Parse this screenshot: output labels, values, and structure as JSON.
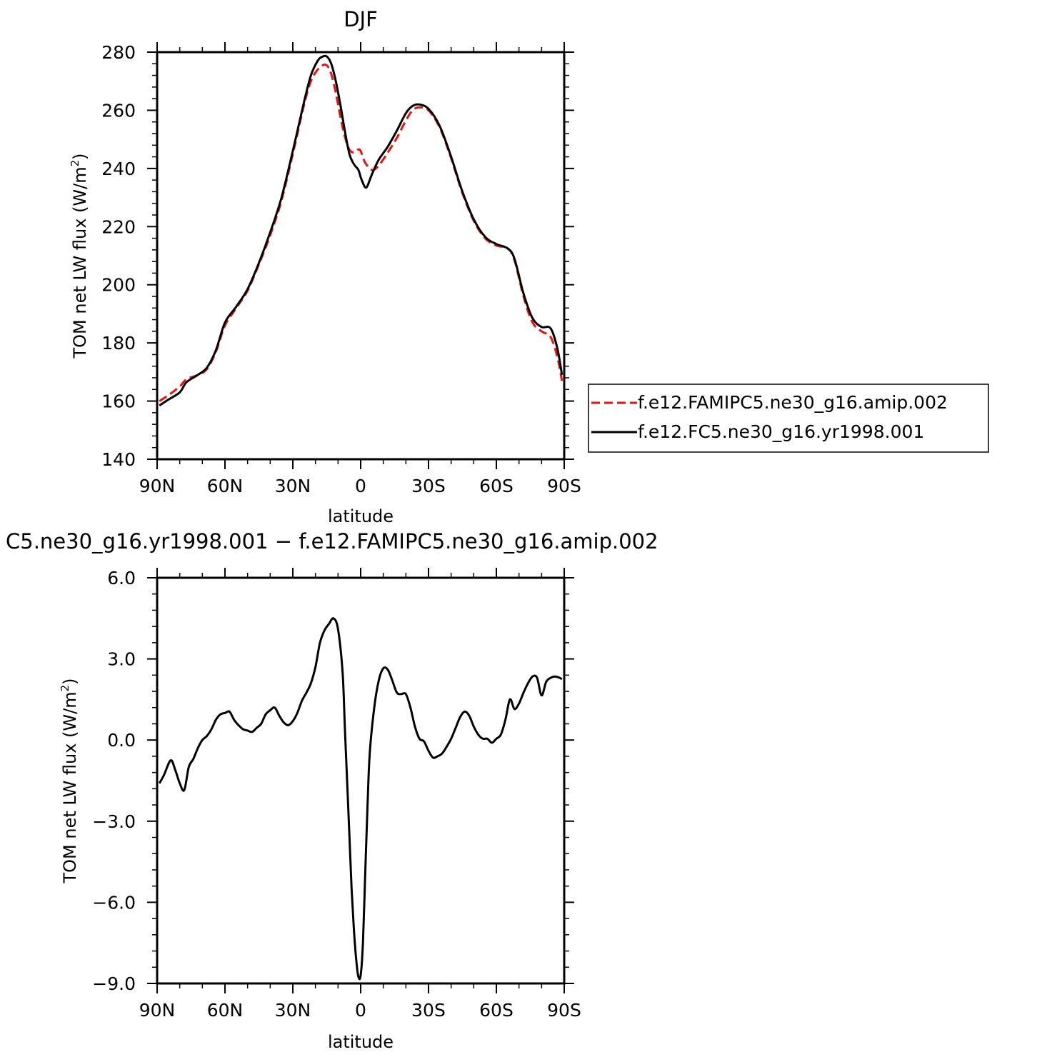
{
  "figure": {
    "top_title": "DJF",
    "bottom_title": "C5.ne30_g16.yr1998.001 − f.e12.FAMIPC5.ne30_g16.amip.002"
  },
  "colors": {
    "control": "#e8130f",
    "test": "#000000"
  },
  "legend": {
    "items": [
      {
        "label": "f.e12.FAMIPC5.ne30_g16.amip.002",
        "style": "dashed",
        "color": "#e8130f"
      },
      {
        "label": "f.e12.FC5.ne30_g16.yr1998.001",
        "style": "solid",
        "color": "#000000"
      }
    ]
  },
  "chart_data": [
    {
      "type": "line",
      "title": "DJF",
      "xlabel": "latitude",
      "ylabel": "TOM net LW flux (W/m²)",
      "ylabel_main": "TOM net LW flux (W/m",
      "ylabel_sup": "2",
      "ylabel_end": ")",
      "xlim": [
        90,
        -90
      ],
      "ylim": [
        140,
        280
      ],
      "x_ticks": [
        90,
        60,
        30,
        0,
        -30,
        -60,
        -90
      ],
      "x_tick_labels": [
        "90N",
        "60N",
        "30N",
        "0",
        "30S",
        "60S",
        "90S"
      ],
      "y_ticks": [
        140,
        160,
        180,
        200,
        220,
        240,
        260,
        280
      ],
      "y_tick_labels": [
        "140",
        "160",
        "180",
        "200",
        "220",
        "240",
        "260",
        "280"
      ],
      "grid": false,
      "legend_position": "right",
      "series": [
        {
          "name": "f.e12.FAMIPC5.ne30_g16.amip.002",
          "style": "dashed",
          "x": [
            89,
            85,
            80,
            77,
            72,
            68,
            64,
            60,
            55,
            50,
            45,
            40,
            35,
            30,
            25,
            22,
            19,
            17,
            15,
            13,
            11,
            9,
            7,
            5,
            3,
            1,
            0,
            -2,
            -5,
            -8,
            -12,
            -16,
            -20,
            -23,
            -26,
            -30,
            -35,
            -40,
            -45,
            -50,
            -55,
            -60,
            -65,
            -68,
            -72,
            -76,
            -80,
            -84,
            -87,
            -89
          ],
          "y": [
            160,
            162,
            165,
            167.5,
            169,
            171,
            177,
            186,
            192,
            198,
            207,
            217,
            229,
            245,
            262,
            270,
            274,
            275.4,
            275.5,
            272.5,
            266,
            258,
            251,
            246.5,
            245.5,
            246.5,
            246,
            242,
            239.5,
            241,
            245.5,
            250.5,
            256.5,
            260,
            261,
            260,
            254,
            243.5,
            231.5,
            222,
            216,
            213.5,
            212.5,
            208.5,
            196,
            187,
            184,
            182,
            175,
            167
          ]
        },
        {
          "name": "f.e12.FC5.ne30_g16.yr1998.001",
          "style": "solid",
          "x": [
            89,
            85,
            80,
            77,
            72,
            68,
            64,
            60,
            55,
            50,
            45,
            40,
            35,
            30,
            25,
            22,
            19,
            17,
            15,
            13,
            11,
            9,
            7,
            5,
            3,
            1,
            0,
            -1,
            -2,
            -3,
            -5,
            -8,
            -12,
            -16,
            -20,
            -23,
            -26,
            -30,
            -35,
            -40,
            -45,
            -50,
            -55,
            -60,
            -65,
            -68,
            -72,
            -76,
            -80,
            -84,
            -87,
            -89
          ],
          "y": [
            158.5,
            160.5,
            163,
            166.5,
            169,
            171.5,
            177.5,
            187,
            192.5,
            198.5,
            207.5,
            218,
            230,
            246,
            263,
            272,
            277,
            278.4,
            278.5,
            276,
            270,
            262,
            253,
            245,
            241.5,
            239.5,
            237,
            235,
            233.5,
            234,
            238,
            243,
            247.5,
            253,
            259,
            261.5,
            262,
            260.5,
            254.5,
            244,
            232,
            222.5,
            216.5,
            214,
            212.5,
            209,
            197,
            188.5,
            185.5,
            185,
            178,
            169
          ]
        }
      ]
    },
    {
      "type": "line",
      "title": "C5.ne30_g16.yr1998.001 − f.e12.FAMIPC5.ne30_g16.amip.002",
      "xlabel": "latitude",
      "ylabel": "TOM net LW flux (W/m²)",
      "ylabel_main": "TOM net LW flux (W/m",
      "ylabel_sup": "2",
      "ylabel_end": ")",
      "xlim": [
        90,
        -90
      ],
      "ylim": [
        -9,
        6
      ],
      "x_ticks": [
        90,
        60,
        30,
        0,
        -30,
        -60,
        -90
      ],
      "x_tick_labels": [
        "90N",
        "60N",
        "30N",
        "0",
        "30S",
        "60S",
        "90S"
      ],
      "y_ticks": [
        -9,
        -6,
        -3,
        0,
        3,
        6
      ],
      "y_tick_labels": [
        "−9.0",
        "−6.0",
        "−3.0",
        "0.0",
        "3.0",
        "6.0"
      ],
      "grid": false,
      "series": [
        {
          "style": "solid",
          "x": [
            89,
            87,
            84,
            82,
            80,
            78,
            76,
            74,
            72,
            70,
            68,
            66,
            64,
            62,
            60,
            58,
            56,
            54,
            52,
            50,
            48,
            46,
            44,
            42,
            40,
            38,
            36,
            34,
            32,
            30,
            28,
            26,
            24,
            22,
            20,
            18,
            16,
            14,
            12,
            10,
            8,
            7,
            6,
            5,
            4,
            3,
            2,
            1,
            0,
            -1,
            -2,
            -3,
            -4,
            -6,
            -8,
            -10,
            -12,
            -14,
            -16,
            -18,
            -20,
            -22,
            -24,
            -26,
            -28,
            -30,
            -32,
            -34,
            -36,
            -38,
            -40,
            -42,
            -44,
            -46,
            -48,
            -50,
            -52,
            -54,
            -56,
            -58,
            -60,
            -62,
            -64,
            -66,
            -68,
            -70,
            -72,
            -74,
            -76,
            -78,
            -80,
            -82,
            -84,
            -86,
            -88,
            -89
          ],
          "y": [
            -1.6,
            -1.3,
            -0.75,
            -1.1,
            -1.6,
            -1.85,
            -1.0,
            -0.7,
            -0.3,
            0.0,
            0.15,
            0.4,
            0.75,
            0.95,
            1.0,
            1.05,
            0.75,
            0.55,
            0.4,
            0.35,
            0.3,
            0.45,
            0.6,
            0.95,
            1.1,
            1.2,
            0.9,
            0.65,
            0.55,
            0.7,
            1.0,
            1.45,
            1.75,
            2.1,
            2.7,
            3.6,
            4.05,
            4.3,
            4.5,
            4.1,
            2.5,
            0.5,
            -1.5,
            -3.5,
            -5.5,
            -7.0,
            -8.1,
            -8.75,
            -8.7,
            -7.5,
            -5.0,
            -2.5,
            -0.5,
            1.2,
            2.2,
            2.65,
            2.6,
            2.2,
            1.75,
            1.7,
            1.7,
            1.2,
            0.5,
            0.05,
            -0.05,
            -0.4,
            -0.65,
            -0.6,
            -0.5,
            -0.25,
            0.05,
            0.45,
            0.85,
            1.05,
            0.9,
            0.5,
            0.2,
            0.05,
            0.05,
            -0.1,
            0.05,
            0.2,
            0.75,
            1.5,
            1.15,
            1.35,
            1.75,
            2.1,
            2.35,
            2.3,
            1.65,
            2.15,
            2.3,
            2.35,
            2.3,
            2.25
          ]
        }
      ]
    }
  ]
}
